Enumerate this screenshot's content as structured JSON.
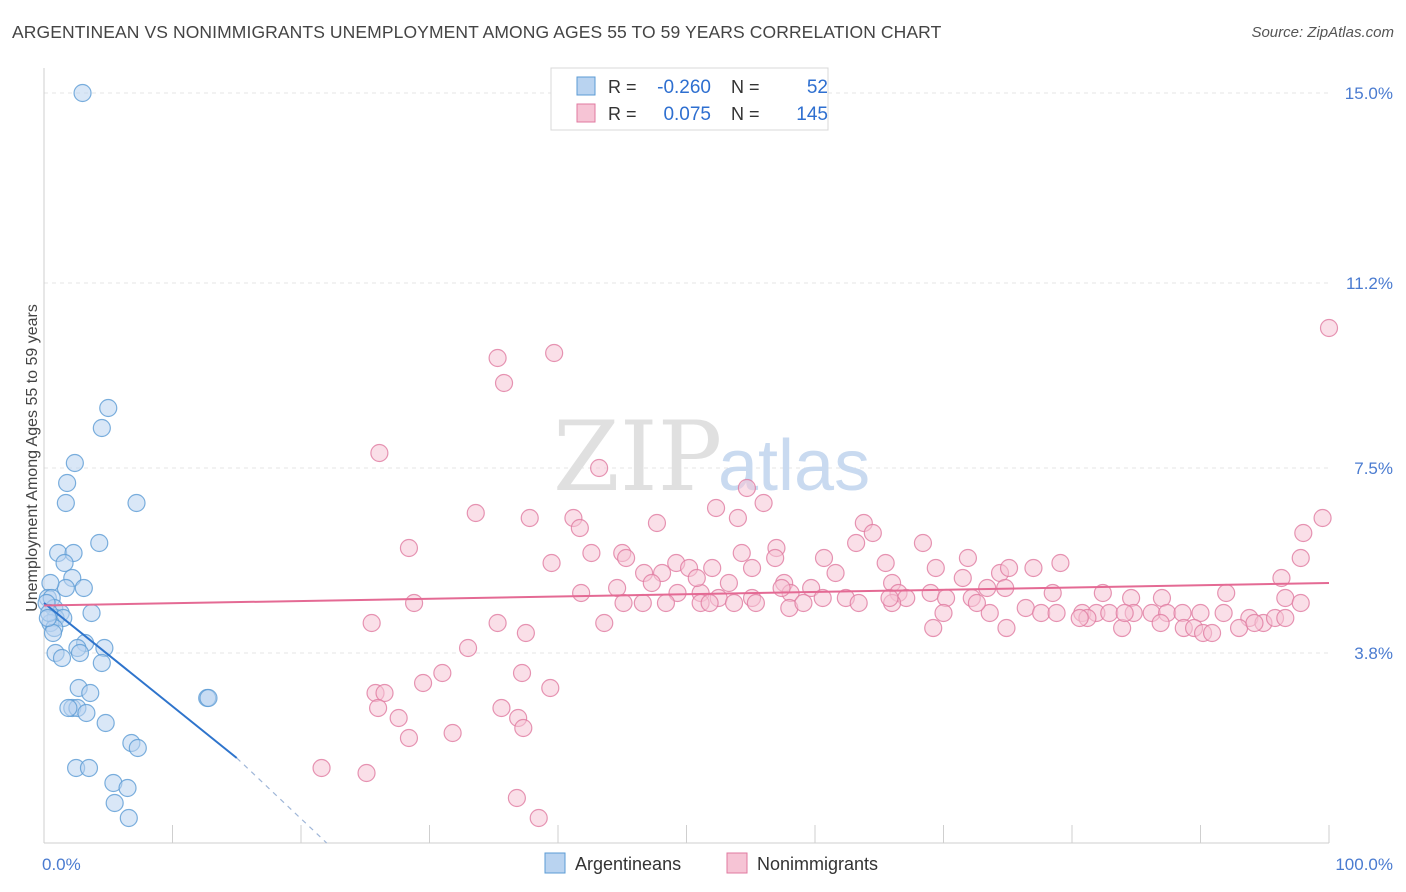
{
  "title": "ARGENTINEAN VS NONIMMIGRANTS UNEMPLOYMENT AMONG AGES 55 TO 59 YEARS CORRELATION CHART",
  "source": "Source: ZipAtlas.com",
  "watermark": {
    "zip": "ZIP",
    "atlas": "atlas"
  },
  "colors": {
    "blue": "#5b9bd5",
    "blue_fill": "#b9d3f0",
    "blue_line": "#2e74cc",
    "pink": "#e07aa0",
    "pink_fill": "#f6c4d5",
    "pink_line": "#e46a94",
    "grid": "#e5e5e5",
    "axis_text": "#4a7bd0"
  },
  "legend": {
    "rows": [
      {
        "r_label": "R =",
        "r_value": "-0.260",
        "n_label": "N =",
        "n_value": "52",
        "color": "blue"
      },
      {
        "r_label": "R =",
        "r_value": "0.075",
        "n_label": "N =",
        "n_value": "145",
        "color": "pink"
      }
    ]
  },
  "bottom_legend": [
    {
      "label": "Argentineans",
      "color": "blue"
    },
    {
      "label": "Nonimmigrants",
      "color": "pink"
    }
  ],
  "chart_data": {
    "type": "scatter",
    "title": "ARGENTINEAN VS NONIMMIGRANTS UNEMPLOYMENT AMONG AGES 55 TO 59 YEARS CORRELATION CHART",
    "xlabel": "",
    "ylabel": "Unemployment Among Ages 55 to 59 years",
    "xlim": [
      0,
      100
    ],
    "ylim": [
      0,
      15.5
    ],
    "x_tick_labels": [
      "0.0%",
      "100.0%"
    ],
    "y_ticks": [
      3.8,
      7.5,
      11.2,
      15.0
    ],
    "y_tick_labels": [
      "3.8%",
      "7.5%",
      "11.2%",
      "15.0%"
    ],
    "series": [
      {
        "name": "Argentineans",
        "r": -0.26,
        "n": 52,
        "trend": {
          "x": [
            0,
            15
          ],
          "y": [
            4.8,
            1.7
          ],
          "dashed_to": [
            22,
            0
          ]
        },
        "points": [
          [
            3,
            15.0
          ],
          [
            5,
            8.7
          ],
          [
            4.5,
            8.3
          ],
          [
            2.4,
            7.6
          ],
          [
            1.8,
            7.2
          ],
          [
            1.7,
            6.8
          ],
          [
            7.2,
            6.8
          ],
          [
            4.3,
            6.0
          ],
          [
            1.1,
            5.8
          ],
          [
            2.3,
            5.8
          ],
          [
            1.6,
            5.6
          ],
          [
            2.2,
            5.3
          ],
          [
            1.7,
            5.1
          ],
          [
            3.1,
            5.1
          ],
          [
            0.5,
            5.2
          ],
          [
            0.3,
            4.9
          ],
          [
            0.6,
            4.9
          ],
          [
            0.8,
            4.7
          ],
          [
            1.3,
            4.6
          ],
          [
            0.9,
            4.5
          ],
          [
            1.5,
            4.5
          ],
          [
            3.7,
            4.6
          ],
          [
            0.5,
            4.4
          ],
          [
            0.8,
            4.3
          ],
          [
            0.7,
            4.2
          ],
          [
            3.2,
            4.0
          ],
          [
            2.6,
            3.9
          ],
          [
            4.7,
            3.9
          ],
          [
            0.9,
            3.8
          ],
          [
            2.8,
            3.8
          ],
          [
            1.4,
            3.7
          ],
          [
            4.5,
            3.6
          ],
          [
            2.7,
            3.1
          ],
          [
            3.6,
            3.0
          ],
          [
            12.7,
            2.9
          ],
          [
            12.8,
            2.9
          ],
          [
            2.2,
            2.7
          ],
          [
            2.6,
            2.7
          ],
          [
            1.9,
            2.7
          ],
          [
            3.3,
            2.6
          ],
          [
            4.8,
            2.4
          ],
          [
            6.8,
            2.0
          ],
          [
            7.3,
            1.9
          ],
          [
            2.5,
            1.5
          ],
          [
            3.5,
            1.5
          ],
          [
            5.4,
            1.2
          ],
          [
            6.5,
            1.1
          ],
          [
            5.5,
            0.8
          ],
          [
            6.6,
            0.5
          ],
          [
            0.2,
            4.8
          ],
          [
            0.4,
            4.6
          ],
          [
            0.3,
            4.5
          ]
        ]
      },
      {
        "name": "Nonimmigrants",
        "r": 0.075,
        "n": 145,
        "trend": {
          "x": [
            0,
            100
          ],
          "y": [
            4.75,
            5.2
          ]
        },
        "points": [
          [
            35.3,
            9.7
          ],
          [
            39.7,
            9.8
          ],
          [
            35.8,
            9.2
          ],
          [
            26.1,
            7.8
          ],
          [
            43.2,
            7.5
          ],
          [
            54.7,
            7.1
          ],
          [
            52.3,
            6.7
          ],
          [
            56.0,
            6.8
          ],
          [
            33.6,
            6.6
          ],
          [
            37.8,
            6.5
          ],
          [
            41.2,
            6.5
          ],
          [
            41.7,
            6.3
          ],
          [
            47.7,
            6.4
          ],
          [
            54.0,
            6.5
          ],
          [
            63.8,
            6.4
          ],
          [
            64.5,
            6.2
          ],
          [
            63.2,
            6.0
          ],
          [
            98.0,
            6.2
          ],
          [
            99.5,
            6.5
          ],
          [
            28.4,
            5.9
          ],
          [
            42.6,
            5.8
          ],
          [
            45.0,
            5.8
          ],
          [
            54.3,
            5.8
          ],
          [
            57.0,
            5.9
          ],
          [
            68.4,
            6.0
          ],
          [
            39.5,
            5.6
          ],
          [
            45.3,
            5.7
          ],
          [
            49.2,
            5.6
          ],
          [
            52.0,
            5.5
          ],
          [
            55.1,
            5.5
          ],
          [
            56.9,
            5.7
          ],
          [
            60.7,
            5.7
          ],
          [
            65.5,
            5.6
          ],
          [
            71.9,
            5.7
          ],
          [
            79.1,
            5.6
          ],
          [
            97.8,
            5.7
          ],
          [
            46.7,
            5.4
          ],
          [
            48.1,
            5.4
          ],
          [
            50.2,
            5.5
          ],
          [
            53.3,
            5.2
          ],
          [
            57.6,
            5.2
          ],
          [
            61.6,
            5.4
          ],
          [
            66.0,
            5.2
          ],
          [
            69.4,
            5.5
          ],
          [
            71.5,
            5.3
          ],
          [
            73.4,
            5.1
          ],
          [
            74.4,
            5.4
          ],
          [
            75.1,
            5.5
          ],
          [
            77.0,
            5.5
          ],
          [
            96.3,
            5.3
          ],
          [
            41.8,
            5.0
          ],
          [
            44.6,
            5.1
          ],
          [
            49.3,
            5.0
          ],
          [
            51.1,
            5.0
          ],
          [
            52.5,
            4.9
          ],
          [
            55.1,
            4.9
          ],
          [
            58.1,
            5.0
          ],
          [
            59.7,
            5.1
          ],
          [
            60.6,
            4.9
          ],
          [
            62.4,
            4.9
          ],
          [
            66.5,
            5.0
          ],
          [
            67.1,
            4.9
          ],
          [
            69.0,
            5.0
          ],
          [
            70.2,
            4.9
          ],
          [
            72.2,
            4.9
          ],
          [
            74.8,
            5.1
          ],
          [
            78.5,
            5.0
          ],
          [
            82.4,
            5.0
          ],
          [
            84.6,
            4.9
          ],
          [
            87.0,
            4.9
          ],
          [
            92.0,
            5.0
          ],
          [
            96.6,
            4.9
          ],
          [
            97.8,
            4.8
          ],
          [
            28.8,
            4.8
          ],
          [
            45.1,
            4.8
          ],
          [
            46.6,
            4.8
          ],
          [
            48.4,
            4.8
          ],
          [
            51.1,
            4.8
          ],
          [
            51.8,
            4.8
          ],
          [
            53.7,
            4.8
          ],
          [
            55.4,
            4.8
          ],
          [
            58.0,
            4.7
          ],
          [
            63.4,
            4.8
          ],
          [
            66.0,
            4.8
          ],
          [
            70.0,
            4.6
          ],
          [
            73.6,
            4.6
          ],
          [
            76.4,
            4.7
          ],
          [
            77.6,
            4.6
          ],
          [
            78.8,
            4.6
          ],
          [
            80.8,
            4.6
          ],
          [
            81.9,
            4.6
          ],
          [
            82.9,
            4.6
          ],
          [
            84.8,
            4.6
          ],
          [
            86.2,
            4.6
          ],
          [
            87.4,
            4.6
          ],
          [
            88.6,
            4.6
          ],
          [
            90.0,
            4.6
          ],
          [
            91.8,
            4.6
          ],
          [
            93.8,
            4.5
          ],
          [
            94.9,
            4.4
          ],
          [
            95.8,
            4.5
          ],
          [
            96.6,
            4.5
          ],
          [
            25.5,
            4.4
          ],
          [
            35.3,
            4.4
          ],
          [
            43.6,
            4.4
          ],
          [
            69.2,
            4.3
          ],
          [
            74.9,
            4.3
          ],
          [
            81.2,
            4.5
          ],
          [
            83.9,
            4.3
          ],
          [
            86.9,
            4.4
          ],
          [
            88.7,
            4.3
          ],
          [
            89.5,
            4.3
          ],
          [
            90.2,
            4.2
          ],
          [
            90.9,
            4.2
          ],
          [
            93.0,
            4.3
          ],
          [
            94.2,
            4.4
          ],
          [
            37.5,
            4.2
          ],
          [
            33.0,
            3.9
          ],
          [
            37.2,
            3.4
          ],
          [
            31.0,
            3.4
          ],
          [
            25.8,
            3.0
          ],
          [
            26.5,
            3.0
          ],
          [
            29.5,
            3.2
          ],
          [
            26.0,
            2.7
          ],
          [
            27.6,
            2.5
          ],
          [
            35.6,
            2.7
          ],
          [
            36.9,
            2.5
          ],
          [
            37.3,
            2.3
          ],
          [
            39.4,
            3.1
          ],
          [
            28.4,
            2.1
          ],
          [
            31.8,
            2.2
          ],
          [
            21.6,
            1.5
          ],
          [
            25.1,
            1.4
          ],
          [
            36.8,
            0.9
          ],
          [
            38.5,
            0.5
          ],
          [
            100.0,
            10.3
          ],
          [
            84.1,
            4.6
          ],
          [
            80.6,
            4.5
          ],
          [
            72.6,
            4.8
          ],
          [
            65.8,
            4.9
          ],
          [
            57.4,
            5.1
          ],
          [
            50.8,
            5.3
          ],
          [
            47.3,
            5.2
          ],
          [
            59.1,
            4.8
          ]
        ]
      }
    ]
  }
}
